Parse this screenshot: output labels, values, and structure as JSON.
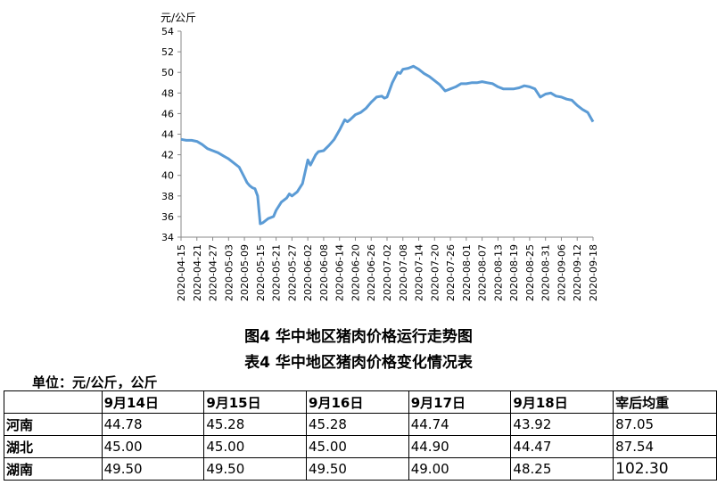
{
  "chart_data": {
    "type": "line",
    "ylabel": "元/公斤",
    "ylim": [
      34,
      54
    ],
    "yticks": [
      34,
      36,
      38,
      40,
      42,
      44,
      46,
      48,
      50,
      52,
      54
    ],
    "grid": false,
    "legend": "none",
    "line_color": "#5b9bd5",
    "xtick_labels": [
      "2020-04-15",
      "2020-04-21",
      "2020-04-27",
      "2020-05-03",
      "2020-05-09",
      "2020-05-15",
      "2020-05-21",
      "2020-05-27",
      "2020-06-02",
      "2020-06-08",
      "2020-06-14",
      "2020-06-20",
      "2020-06-26",
      "2020-07-02",
      "2020-07-08",
      "2020-07-14",
      "2020-07-20",
      "2020-07-26",
      "2020-08-01",
      "2020-08-07",
      "2020-08-13",
      "2020-08-19",
      "2020-08-25",
      "2020-08-31",
      "2020-09-06",
      "2020-09-12",
      "2020-09-18"
    ],
    "series": [
      {
        "x": [
          "2020-04-15",
          "2020-04-17",
          "2020-04-19",
          "2020-04-21",
          "2020-04-23",
          "2020-04-25",
          "2020-04-27",
          "2020-04-29",
          "2020-05-01",
          "2020-05-03",
          "2020-05-05",
          "2020-05-07",
          "2020-05-09",
          "2020-05-10",
          "2020-05-11",
          "2020-05-12",
          "2020-05-13",
          "2020-05-14",
          "2020-05-15",
          "2020-05-16",
          "2020-05-18",
          "2020-05-20",
          "2020-05-21",
          "2020-05-23",
          "2020-05-25",
          "2020-05-26",
          "2020-05-27",
          "2020-05-29",
          "2020-05-31",
          "2020-06-02",
          "2020-06-03",
          "2020-06-05",
          "2020-06-06",
          "2020-06-08",
          "2020-06-10",
          "2020-06-12",
          "2020-06-14",
          "2020-06-16",
          "2020-06-17",
          "2020-06-18",
          "2020-06-20",
          "2020-06-22",
          "2020-06-24",
          "2020-06-26",
          "2020-06-28",
          "2020-06-30",
          "2020-07-01",
          "2020-07-02",
          "2020-07-04",
          "2020-07-06",
          "2020-07-07",
          "2020-07-08",
          "2020-07-10",
          "2020-07-12",
          "2020-07-14",
          "2020-07-16",
          "2020-07-18",
          "2020-07-20",
          "2020-07-22",
          "2020-07-24",
          "2020-07-26",
          "2020-07-28",
          "2020-07-30",
          "2020-08-01",
          "2020-08-03",
          "2020-08-05",
          "2020-08-07",
          "2020-08-09",
          "2020-08-11",
          "2020-08-13",
          "2020-08-15",
          "2020-08-17",
          "2020-08-19",
          "2020-08-21",
          "2020-08-23",
          "2020-08-25",
          "2020-08-27",
          "2020-08-29",
          "2020-08-31",
          "2020-09-02",
          "2020-09-04",
          "2020-09-06",
          "2020-09-08",
          "2020-09-10",
          "2020-09-12",
          "2020-09-14",
          "2020-09-16",
          "2020-09-18"
        ],
        "values": [
          43.5,
          43.4,
          43.4,
          43.3,
          43.0,
          42.6,
          42.4,
          42.2,
          41.9,
          41.6,
          41.2,
          40.8,
          39.8,
          39.3,
          39.0,
          38.8,
          38.7,
          38.0,
          35.3,
          35.4,
          35.8,
          36.0,
          36.6,
          37.4,
          37.8,
          38.2,
          38.0,
          38.4,
          39.2,
          41.5,
          41.0,
          42.0,
          42.3,
          42.4,
          42.9,
          43.5,
          44.4,
          45.4,
          45.2,
          45.4,
          45.9,
          46.1,
          46.5,
          47.1,
          47.6,
          47.7,
          47.5,
          47.6,
          49.0,
          50.0,
          49.9,
          50.3,
          50.4,
          50.6,
          50.3,
          49.9,
          49.6,
          49.2,
          48.8,
          48.2,
          48.4,
          48.6,
          48.9,
          48.9,
          49.0,
          49.0,
          49.1,
          49.0,
          48.9,
          48.6,
          48.4,
          48.4,
          48.4,
          48.5,
          48.7,
          48.6,
          48.4,
          47.6,
          47.9,
          48.0,
          47.7,
          47.6,
          47.4,
          47.3,
          46.8,
          46.4,
          46.1,
          45.2
        ]
      }
    ]
  },
  "figure_title": "图4 华中地区猪肉价格运行走势图",
  "table_title": "表4 华中地区猪肉价格变化情况表",
  "unit_label": "单位：元/公斤，公斤",
  "table": {
    "headers": [
      "",
      "9月14日",
      "9月15日",
      "9月16日",
      "9月17日",
      "9月18日",
      "宰后均重"
    ],
    "rows": [
      [
        "河南",
        "44.78",
        "45.28",
        "45.28",
        "44.74",
        "43.92",
        "87.05"
      ],
      [
        "湖北",
        "45.00",
        "45.00",
        "45.00",
        "44.90",
        "44.47",
        "87.54"
      ],
      [
        "湖南",
        "49.50",
        "49.50",
        "49.50",
        "49.00",
        "48.25",
        "102.30"
      ]
    ]
  }
}
